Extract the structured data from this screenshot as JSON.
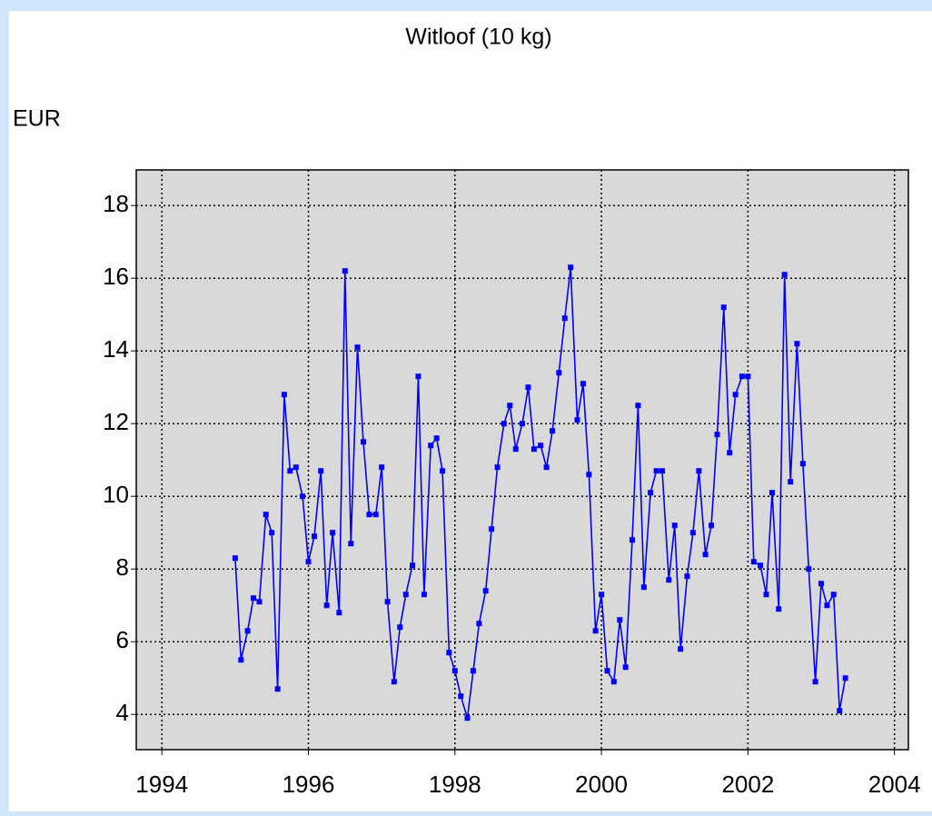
{
  "chart_data": {
    "type": "line",
    "title": "Witloof (10 kg)",
    "y_label": "EUR",
    "x": [
      1995,
      1995.08,
      1995.17,
      1995.25,
      1995.33,
      1995.42,
      1995.5,
      1995.58,
      1995.67,
      1995.75,
      1995.83,
      1995.92,
      1996,
      1996.08,
      1996.17,
      1996.25,
      1996.33,
      1996.42,
      1996.5,
      1996.58,
      1996.67,
      1996.75,
      1996.83,
      1996.92,
      1997,
      1997.08,
      1997.17,
      1997.25,
      1997.33,
      1997.42,
      1997.5,
      1997.58,
      1997.67,
      1997.75,
      1997.83,
      1997.92,
      1998,
      1998.08,
      1998.17,
      1998.25,
      1998.33,
      1998.42,
      1998.5,
      1998.58,
      1998.67,
      1998.75,
      1998.83,
      1998.92,
      1999,
      1999.08,
      1999.17,
      1999.25,
      1999.33,
      1999.42,
      1999.5,
      1999.58,
      1999.67,
      1999.75,
      1999.83,
      1999.92,
      2000,
      2000.08,
      2000.17,
      2000.25,
      2000.33,
      2000.42,
      2000.5,
      2000.58,
      2000.67,
      2000.75,
      2000.83,
      2000.92,
      2001,
      2001.08,
      2001.17,
      2001.25,
      2001.33,
      2001.42,
      2001.5,
      2001.58,
      2001.67,
      2001.75,
      2001.83,
      2001.92,
      2002,
      2002.08,
      2002.17,
      2002.25,
      2002.33,
      2002.42,
      2002.5,
      2002.58,
      2002.67,
      2002.75,
      2002.83,
      2002.92,
      2003,
      2003.08,
      2003.17,
      2003.25,
      2003.33
    ],
    "values": [
      8.3,
      5.5,
      6.3,
      7.2,
      7.1,
      9.5,
      9.0,
      4.7,
      12.8,
      10.7,
      10.8,
      10.0,
      8.2,
      8.9,
      10.7,
      7.0,
      9.0,
      6.8,
      16.2,
      8.7,
      14.1,
      11.5,
      9.5,
      9.5,
      10.8,
      7.1,
      4.9,
      6.4,
      7.3,
      8.1,
      13.3,
      7.3,
      11.4,
      11.6,
      10.7,
      5.7,
      5.2,
      4.5,
      3.9,
      5.2,
      6.5,
      7.4,
      9.1,
      10.8,
      12.0,
      12.5,
      11.3,
      12.0,
      13.0,
      11.3,
      11.4,
      10.8,
      11.8,
      13.4,
      14.9,
      16.3,
      12.1,
      13.1,
      10.6,
      6.3,
      7.3,
      5.2,
      4.9,
      6.6,
      5.3,
      8.8,
      12.5,
      7.5,
      10.1,
      10.7,
      10.7,
      7.7,
      9.2,
      5.8,
      7.8,
      9.0,
      10.7,
      8.4,
      9.2,
      11.7,
      15.2,
      11.2,
      12.8,
      13.3,
      13.3,
      8.2,
      8.1,
      7.3,
      10.1,
      6.9,
      16.1,
      10.4,
      14.2,
      10.9,
      8.0,
      4.9,
      7.6,
      7.0,
      7.3,
      4.1,
      5.0
    ],
    "color": "#0000ff",
    "xlim": [
      1993.65,
      2004.19
    ],
    "xticks": [
      1994,
      1996,
      1998,
      2000,
      2002,
      2004
    ],
    "ylim": [
      3.03,
      18.98
    ],
    "yticks": [
      4,
      6,
      8,
      10,
      12,
      14,
      16,
      18
    ],
    "grid": true
  }
}
